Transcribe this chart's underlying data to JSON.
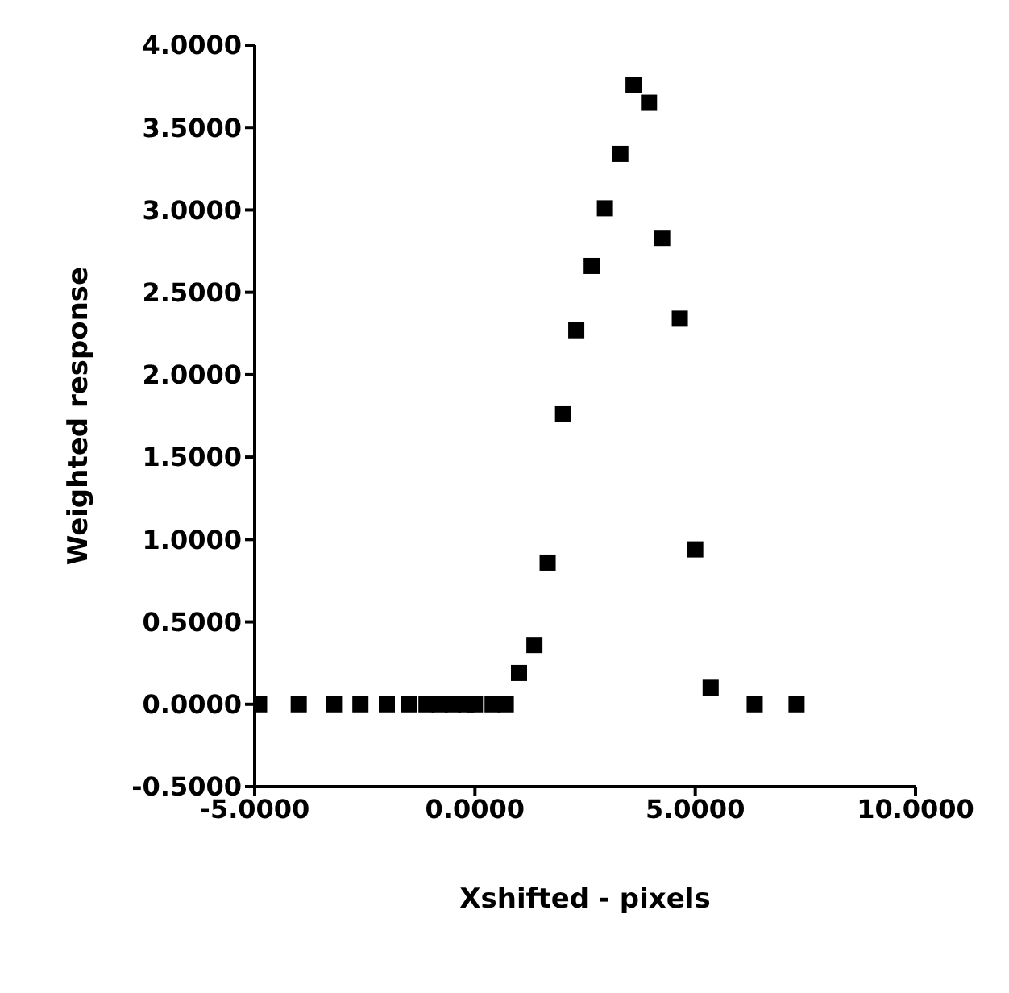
{
  "chart_data": {
    "type": "scatter",
    "xlabel": "Xshifted - pixels",
    "ylabel": "Weighted response",
    "marker": "square",
    "grid": false,
    "legend": false,
    "xlim": [
      -5,
      10
    ],
    "ylim": [
      -0.5,
      4
    ],
    "xticks": [
      {
        "value": -5,
        "label": "-5.0000"
      },
      {
        "value": 0,
        "label": "0.0000"
      },
      {
        "value": 5,
        "label": "5.0000"
      },
      {
        "value": 10,
        "label": "10.0000"
      }
    ],
    "yticks": [
      {
        "value": -0.5,
        "label": "-0.5000"
      },
      {
        "value": 0,
        "label": "0.0000"
      },
      {
        "value": 0.5,
        "label": "0.5000"
      },
      {
        "value": 1,
        "label": "1.0000"
      },
      {
        "value": 1.5,
        "label": "1.5000"
      },
      {
        "value": 2,
        "label": "2.0000"
      },
      {
        "value": 2.5,
        "label": "2.5000"
      },
      {
        "value": 3,
        "label": "3.0000"
      },
      {
        "value": 3.5,
        "label": "3.5000"
      },
      {
        "value": 4,
        "label": "4.0000"
      }
    ],
    "series": [
      {
        "color": "#000000",
        "x": [
          -4.9,
          -4.0,
          -3.2,
          -2.6,
          -2.0,
          -1.5,
          -1.1,
          -0.8,
          -0.5,
          -0.2,
          0.0,
          0.4,
          0.7,
          1.0,
          1.35,
          1.65,
          2.0,
          2.3,
          2.65,
          2.95,
          3.3,
          3.6,
          3.95,
          4.25,
          4.65,
          5.0,
          5.35,
          6.35,
          7.3
        ],
        "values": [
          0,
          0,
          0,
          0,
          0,
          0,
          0,
          0,
          0,
          0,
          0,
          0,
          0,
          0.19,
          0.36,
          0.86,
          1.76,
          2.27,
          2.66,
          3.01,
          3.34,
          3.76,
          3.65,
          2.83,
          2.34,
          0.94,
          0.1,
          0,
          0
        ]
      }
    ]
  }
}
